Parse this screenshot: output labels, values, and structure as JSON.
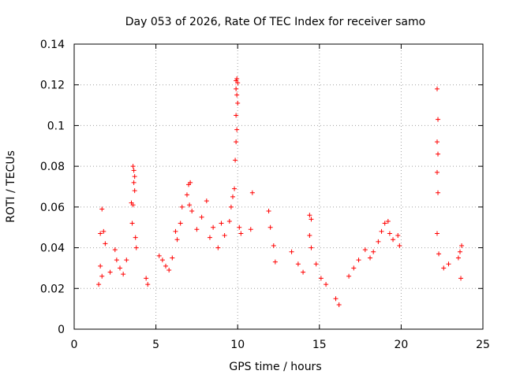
{
  "chart_data": {
    "type": "scatter",
    "title": "Day 053 of 2026, Rate Of TEC Index for receiver samo",
    "xlabel": "GPS time / hours",
    "ylabel": "ROTI / TECUs",
    "xlim": [
      0,
      25
    ],
    "ylim": [
      0,
      0.14
    ],
    "xticks": [
      0,
      5,
      10,
      15,
      20,
      25
    ],
    "yticks": [
      0,
      0.02,
      0.04,
      0.06,
      0.08,
      0.1,
      0.12,
      0.14
    ],
    "xtick_labels": [
      "0",
      "5",
      "10",
      "15",
      "20",
      "25"
    ],
    "ytick_labels": [
      "0",
      "0.02",
      "0.04",
      "0.06",
      "0.08",
      "0.1",
      "0.12",
      "0.14"
    ],
    "grid": true,
    "marker": "+",
    "series_color": "#ff0000",
    "series": [
      {
        "points": [
          [
            1.5,
            0.022
          ],
          [
            1.6,
            0.047
          ],
          [
            1.7,
            0.059
          ],
          [
            1.8,
            0.048
          ],
          [
            1.9,
            0.042
          ],
          [
            1.6,
            0.031
          ],
          [
            1.7,
            0.026
          ],
          [
            2.2,
            0.028
          ],
          [
            2.5,
            0.039
          ],
          [
            2.6,
            0.034
          ],
          [
            2.8,
            0.03
          ],
          [
            3.0,
            0.027
          ],
          [
            3.2,
            0.034
          ],
          [
            3.5,
            0.062
          ],
          [
            3.6,
            0.08
          ],
          [
            3.65,
            0.078
          ],
          [
            3.7,
            0.075
          ],
          [
            3.65,
            0.072
          ],
          [
            3.7,
            0.068
          ],
          [
            3.6,
            0.061
          ],
          [
            3.55,
            0.052
          ],
          [
            3.75,
            0.045
          ],
          [
            3.8,
            0.04
          ],
          [
            4.4,
            0.025
          ],
          [
            4.5,
            0.022
          ],
          [
            5.2,
            0.036
          ],
          [
            5.4,
            0.034
          ],
          [
            5.6,
            0.031
          ],
          [
            5.8,
            0.029
          ],
          [
            6.0,
            0.035
          ],
          [
            6.2,
            0.048
          ],
          [
            6.3,
            0.044
          ],
          [
            6.5,
            0.052
          ],
          [
            6.6,
            0.06
          ],
          [
            6.9,
            0.066
          ],
          [
            7.0,
            0.071
          ],
          [
            7.1,
            0.072
          ],
          [
            7.05,
            0.061
          ],
          [
            7.2,
            0.058
          ],
          [
            7.5,
            0.049
          ],
          [
            7.8,
            0.055
          ],
          [
            8.1,
            0.063
          ],
          [
            8.3,
            0.045
          ],
          [
            8.5,
            0.05
          ],
          [
            8.8,
            0.04
          ],
          [
            9.0,
            0.052
          ],
          [
            9.2,
            0.046
          ],
          [
            9.5,
            0.053
          ],
          [
            9.6,
            0.06
          ],
          [
            9.7,
            0.065
          ],
          [
            9.8,
            0.069
          ],
          [
            9.85,
            0.083
          ],
          [
            9.9,
            0.092
          ],
          [
            9.95,
            0.098
          ],
          [
            9.9,
            0.105
          ],
          [
            10.0,
            0.111
          ],
          [
            9.95,
            0.115
          ],
          [
            9.9,
            0.118
          ],
          [
            10.0,
            0.121
          ],
          [
            9.95,
            0.123
          ],
          [
            9.9,
            0.122
          ],
          [
            10.1,
            0.05
          ],
          [
            10.2,
            0.047
          ],
          [
            10.8,
            0.049
          ],
          [
            10.9,
            0.067
          ],
          [
            11.9,
            0.058
          ],
          [
            12.0,
            0.05
          ],
          [
            12.2,
            0.041
          ],
          [
            12.3,
            0.033
          ],
          [
            13.3,
            0.038
          ],
          [
            13.7,
            0.032
          ],
          [
            14.0,
            0.028
          ],
          [
            14.4,
            0.056
          ],
          [
            14.5,
            0.054
          ],
          [
            14.4,
            0.046
          ],
          [
            14.5,
            0.04
          ],
          [
            14.8,
            0.032
          ],
          [
            15.1,
            0.025
          ],
          [
            15.4,
            0.022
          ],
          [
            16.0,
            0.015
          ],
          [
            16.2,
            0.012
          ],
          [
            16.8,
            0.026
          ],
          [
            17.1,
            0.03
          ],
          [
            17.4,
            0.034
          ],
          [
            17.8,
            0.039
          ],
          [
            18.1,
            0.035
          ],
          [
            18.3,
            0.038
          ],
          [
            18.6,
            0.043
          ],
          [
            18.8,
            0.048
          ],
          [
            19.0,
            0.052
          ],
          [
            19.2,
            0.053
          ],
          [
            19.3,
            0.047
          ],
          [
            19.5,
            0.044
          ],
          [
            19.8,
            0.046
          ],
          [
            19.9,
            0.041
          ],
          [
            22.2,
            0.118
          ],
          [
            22.25,
            0.103
          ],
          [
            22.2,
            0.092
          ],
          [
            22.25,
            0.086
          ],
          [
            22.2,
            0.077
          ],
          [
            22.25,
            0.067
          ],
          [
            22.2,
            0.047
          ],
          [
            22.3,
            0.037
          ],
          [
            22.6,
            0.03
          ],
          [
            22.9,
            0.032
          ],
          [
            23.5,
            0.035
          ],
          [
            23.6,
            0.038
          ],
          [
            23.7,
            0.041
          ],
          [
            23.65,
            0.025
          ]
        ]
      }
    ]
  }
}
